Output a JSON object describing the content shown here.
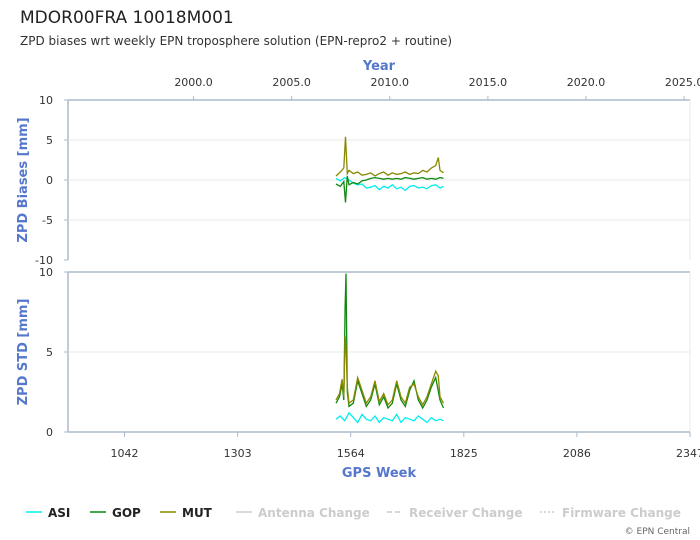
{
  "header": {
    "title": "MDOR00FRA 10018M001",
    "subtitle": "ZPD biases wrt weekly EPN troposphere solution (EPN-repro2 + routine)"
  },
  "credit": "© EPN Central",
  "colors": {
    "ASI": "#00eeee",
    "GOP": "#118811",
    "MUT": "#888800",
    "inactive": "#cccccc",
    "axis": "#aabbcc",
    "title": "#5577cc"
  },
  "chart_data": {
    "type": "line",
    "x_axis_top": {
      "label": "Year",
      "range": [
        1993.6,
        2025.3
      ],
      "ticks": [
        "2000.0",
        "2005.0",
        "2010.0",
        "2015.0",
        "2020.0",
        "2025.0"
      ]
    },
    "x_axis_bottom": {
      "label": "GPS Week",
      "range": [
        911.5,
        2347
      ],
      "ticks": [
        "1042",
        "1303",
        "1564",
        "1825",
        "2086",
        "2347"
      ]
    },
    "panels": [
      {
        "ylabel": "ZPD Biases [mm]",
        "ylim": [
          -10,
          10
        ],
        "yticks": [
          "10",
          "5",
          "0",
          "-5",
          "-10"
        ],
        "series": [
          {
            "name": "ASI",
            "x": [
              1530,
              1540,
              1550,
              1560,
              1570,
              1580,
              1590,
              1600,
              1610,
              1620,
              1630,
              1640,
              1650,
              1660,
              1670,
              1680,
              1690,
              1700,
              1710,
              1720,
              1730,
              1740,
              1750,
              1760,
              1770,
              1778
            ],
            "y": [
              0.2,
              -0.1,
              0.3,
              0.0,
              -0.4,
              -0.6,
              -0.5,
              -1.0,
              -0.9,
              -0.7,
              -1.2,
              -0.8,
              -1.0,
              -0.6,
              -1.1,
              -0.9,
              -1.3,
              -0.8,
              -0.7,
              -1.0,
              -0.9,
              -1.1,
              -0.7,
              -0.6,
              -1.0,
              -0.8
            ]
          },
          {
            "name": "GOP",
            "x": [
              1530,
              1540,
              1548,
              1552,
              1556,
              1560,
              1570,
              1580,
              1590,
              1600,
              1610,
              1620,
              1630,
              1640,
              1650,
              1660,
              1670,
              1680,
              1690,
              1700,
              1710,
              1720,
              1730,
              1740,
              1750,
              1760,
              1770,
              1778
            ],
            "y": [
              -0.5,
              -0.8,
              -0.2,
              -2.8,
              0.5,
              -0.6,
              -0.3,
              -0.5,
              -0.1,
              0.0,
              0.2,
              0.3,
              0.2,
              0.1,
              0.2,
              0.1,
              0.2,
              0.1,
              0.3,
              0.2,
              0.1,
              0.2,
              0.3,
              0.1,
              0.2,
              0.1,
              0.3,
              0.2
            ]
          },
          {
            "name": "MUT",
            "x": [
              1530,
              1540,
              1548,
              1552,
              1556,
              1560,
              1570,
              1580,
              1590,
              1600,
              1610,
              1620,
              1630,
              1640,
              1650,
              1660,
              1670,
              1680,
              1690,
              1700,
              1710,
              1720,
              1730,
              1740,
              1750,
              1760,
              1766,
              1770,
              1778
            ],
            "y": [
              0.5,
              1.0,
              1.5,
              5.4,
              0.8,
              1.2,
              0.8,
              1.0,
              0.6,
              0.7,
              0.9,
              0.5,
              0.8,
              1.0,
              0.6,
              0.9,
              0.7,
              0.8,
              1.0,
              0.7,
              0.9,
              0.8,
              1.2,
              1.0,
              1.5,
              1.8,
              2.8,
              1.2,
              0.9
            ]
          }
        ]
      },
      {
        "ylabel": "ZPD STD [mm]",
        "ylim": [
          0,
          10
        ],
        "yticks": [
          "10",
          "5",
          "0"
        ],
        "series": [
          {
            "name": "ASI",
            "x": [
              1530,
              1540,
              1550,
              1560,
              1570,
              1580,
              1590,
              1600,
              1610,
              1620,
              1630,
              1640,
              1650,
              1660,
              1670,
              1680,
              1690,
              1700,
              1710,
              1720,
              1730,
              1740,
              1750,
              1760,
              1770,
              1778
            ],
            "y": [
              0.8,
              1.0,
              0.7,
              1.2,
              0.9,
              0.6,
              1.1,
              0.8,
              0.7,
              1.0,
              0.6,
              0.9,
              0.8,
              0.7,
              1.1,
              0.6,
              0.9,
              0.8,
              0.7,
              1.0,
              0.8,
              0.6,
              0.9,
              0.7,
              0.8,
              0.7
            ]
          },
          {
            "name": "GOP",
            "x": [
              1530,
              1538,
              1544,
              1548,
              1551,
              1553,
              1556,
              1560,
              1570,
              1580,
              1590,
              1600,
              1610,
              1620,
              1630,
              1640,
              1650,
              1660,
              1670,
              1680,
              1690,
              1700,
              1710,
              1720,
              1730,
              1740,
              1750,
              1760,
              1770,
              1778
            ],
            "y": [
              1.8,
              2.2,
              3.0,
              2.0,
              7.8,
              9.9,
              2.5,
              1.6,
              1.8,
              3.2,
              2.4,
              1.6,
              2.0,
              3.0,
              1.7,
              2.2,
              1.5,
              1.8,
              3.0,
              2.0,
              1.6,
              2.6,
              3.2,
              2.0,
              1.5,
              2.0,
              2.8,
              3.4,
              2.0,
              1.5
            ]
          },
          {
            "name": "MUT",
            "x": [
              1530,
              1538,
              1544,
              1548,
              1551,
              1553,
              1556,
              1560,
              1570,
              1580,
              1590,
              1600,
              1610,
              1620,
              1630,
              1640,
              1650,
              1660,
              1670,
              1680,
              1690,
              1700,
              1710,
              1720,
              1730,
              1740,
              1750,
              1760,
              1766,
              1770,
              1778
            ],
            "y": [
              2.0,
              2.4,
              3.3,
              2.2,
              6.0,
              5.2,
              2.8,
              1.8,
              2.0,
              3.4,
              2.6,
              1.8,
              2.2,
              3.2,
              1.9,
              2.4,
              1.7,
              2.0,
              3.2,
              2.2,
              1.8,
              2.8,
              3.0,
              2.2,
              1.7,
              2.2,
              3.0,
              3.8,
              3.5,
              2.2,
              1.8
            ]
          }
        ]
      }
    ],
    "legend": {
      "placement": "bottom",
      "entries": [
        {
          "label": "ASI",
          "style": "solid",
          "color": "#00eeee",
          "active": true
        },
        {
          "label": "GOP",
          "style": "solid",
          "color": "#118811",
          "active": true
        },
        {
          "label": "MUT",
          "style": "solid",
          "color": "#888800",
          "active": true
        },
        {
          "label": "Antenna Change",
          "style": "solid",
          "color": "#cccccc",
          "active": false
        },
        {
          "label": "Receiver Change",
          "style": "dashed",
          "color": "#cccccc",
          "active": false
        },
        {
          "label": "Firmware Change",
          "style": "dotted",
          "color": "#cccccc",
          "active": false
        }
      ]
    }
  }
}
